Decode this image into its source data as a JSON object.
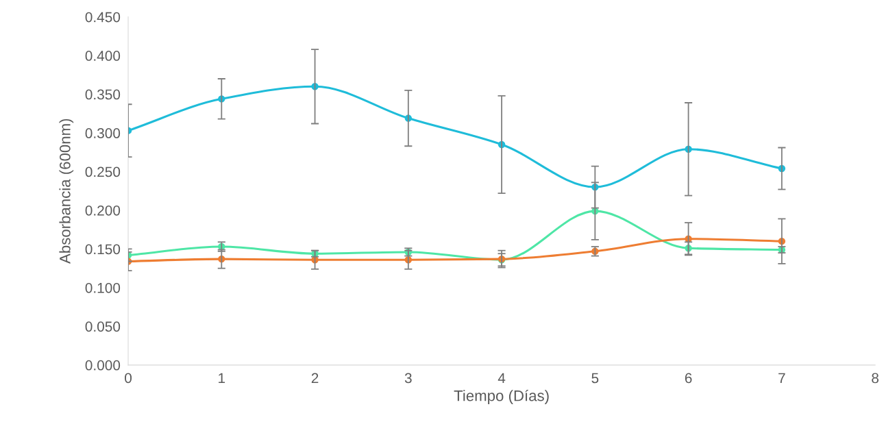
{
  "chart_data": {
    "type": "line",
    "xlabel": "Tiempo (Días)",
    "ylabel": "Absorbancia (600nm)",
    "x": [
      0,
      1,
      2,
      3,
      4,
      5,
      6,
      7
    ],
    "xlim": [
      0,
      8
    ],
    "xticks": [
      0,
      1,
      2,
      3,
      4,
      5,
      6,
      7,
      8
    ],
    "ylim": [
      0,
      0.45
    ],
    "yticks": [
      {
        "value": 0,
        "label": "0.000"
      },
      {
        "value": 0.05,
        "label": "0.050"
      },
      {
        "value": 0.1,
        "label": "0.100"
      },
      {
        "value": 0.15,
        "label": "0.150"
      },
      {
        "value": 0.2,
        "label": "0.200"
      },
      {
        "value": 0.25,
        "label": "0.250"
      },
      {
        "value": 0.3,
        "label": "0.300"
      },
      {
        "value": 0.35,
        "label": "0.350"
      },
      {
        "value": 0.4,
        "label": "0.400"
      },
      {
        "value": 0.45,
        "label": "0.450"
      }
    ],
    "marker": "circle",
    "line_style": "solid",
    "grid": false,
    "series": [
      {
        "color": "#1fbcd9",
        "values": [
          0.303,
          0.344,
          0.36,
          0.319,
          0.285,
          0.23,
          0.279,
          0.254
        ],
        "errors": [
          0.034,
          0.026,
          0.048,
          0.036,
          0.063,
          0.027,
          0.06,
          0.027
        ]
      },
      {
        "color": "#4ee6a6",
        "values": [
          0.142,
          0.153,
          0.144,
          0.146,
          0.136,
          0.199,
          0.151,
          0.149
        ],
        "errors": [
          0.008,
          0.006,
          0.004,
          0.005,
          0.008,
          0.037,
          0.008,
          0.004
        ]
      },
      {
        "color": "#ee7d32",
        "values": [
          0.134,
          0.137,
          0.136,
          0.136,
          0.137,
          0.147,
          0.163,
          0.16
        ],
        "errors": [
          0.012,
          0.012,
          0.012,
          0.012,
          0.011,
          0.006,
          0.021,
          0.029
        ]
      }
    ]
  }
}
